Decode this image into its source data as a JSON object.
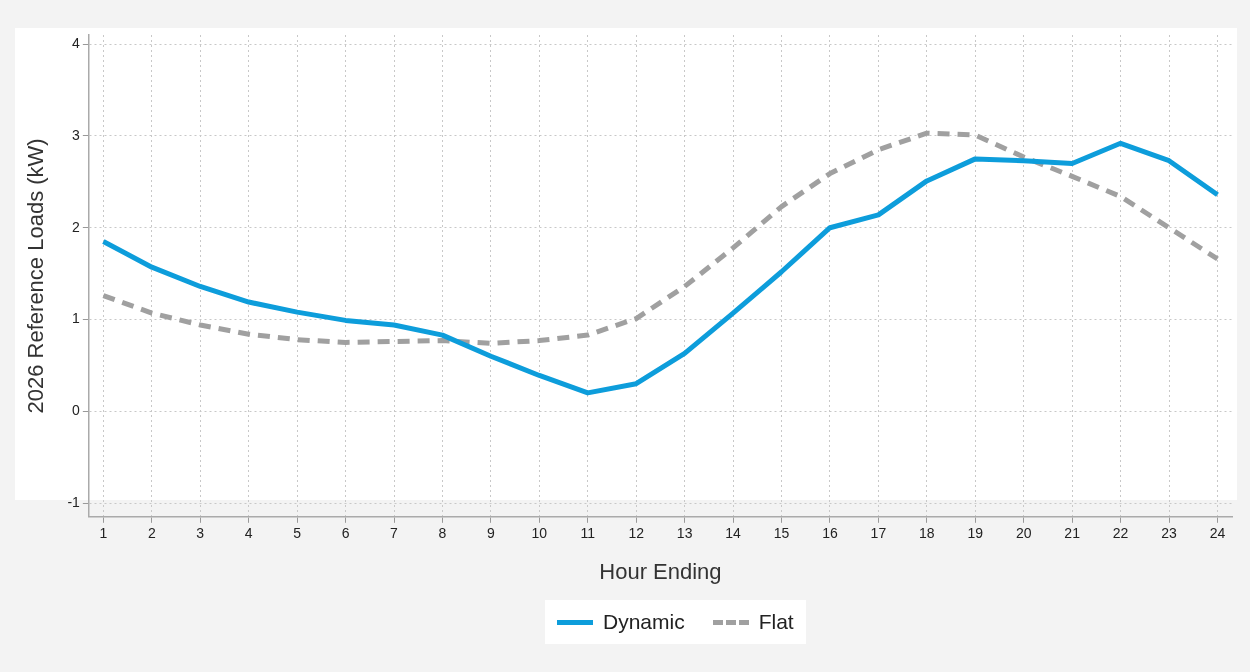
{
  "chart_data": {
    "type": "line",
    "xlabel": "Hour Ending",
    "ylabel": "2026 Reference Loads (kW)",
    "x": [
      1,
      2,
      3,
      4,
      5,
      6,
      7,
      8,
      9,
      10,
      11,
      12,
      13,
      14,
      15,
      16,
      17,
      18,
      19,
      20,
      21,
      22,
      23,
      24
    ],
    "xlim": [
      0.7,
      24.3
    ],
    "xticks": [
      1,
      2,
      3,
      4,
      5,
      6,
      7,
      8,
      9,
      10,
      11,
      12,
      13,
      14,
      15,
      16,
      17,
      18,
      19,
      20,
      21,
      22,
      23,
      24
    ],
    "ylim": [
      -1.15,
      4.1
    ],
    "yticks": [
      -1,
      0,
      1,
      2,
      3,
      4
    ],
    "grid": true,
    "legend": "bottom",
    "marker": "none",
    "series": [
      {
        "name": "Dynamic",
        "color": "#0d9ddb",
        "line_style": "solid",
        "values": [
          1.85,
          1.57,
          1.36,
          1.19,
          1.08,
          0.99,
          0.94,
          0.83,
          0.6,
          0.39,
          0.2,
          0.3,
          0.63,
          1.07,
          1.52,
          2.0,
          2.14,
          2.51,
          2.75,
          2.73,
          2.7,
          2.92,
          2.73,
          2.36
        ]
      },
      {
        "name": "Flat",
        "color": "#a0a0a0",
        "line_style": "dashed",
        "values": [
          1.26,
          1.07,
          0.94,
          0.84,
          0.78,
          0.75,
          0.76,
          0.77,
          0.74,
          0.77,
          0.83,
          1.01,
          1.36,
          1.78,
          2.23,
          2.59,
          2.85,
          3.03,
          3.01,
          2.77,
          2.56,
          2.34,
          2.0,
          1.66
        ]
      }
    ]
  }
}
